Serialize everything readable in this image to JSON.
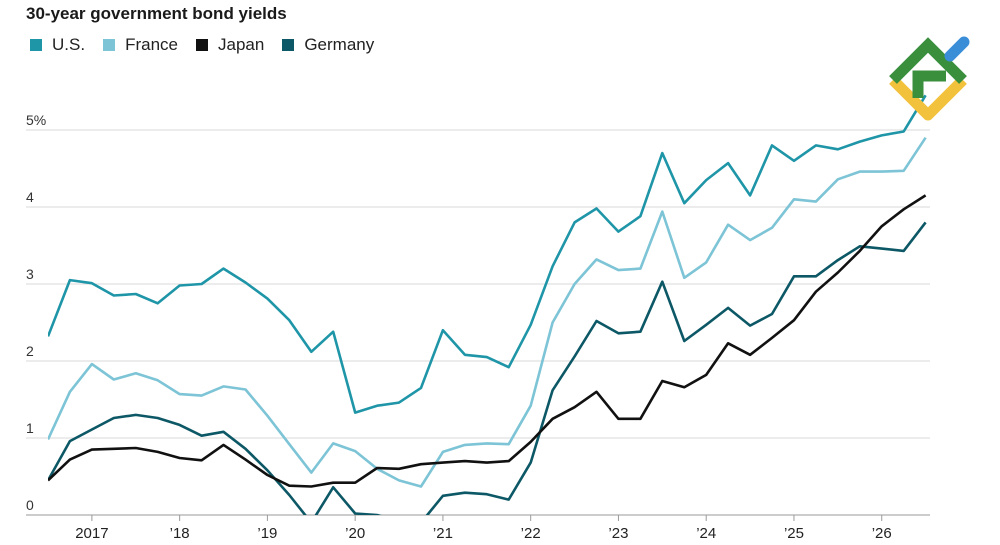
{
  "chart_data": {
    "type": "line",
    "title": "30-year government bond yields",
    "xlabel": "",
    "ylabel": "",
    "ylim": [
      0,
      5.5
    ],
    "xlim": [
      2016.5,
      2026.55
    ],
    "grid": true,
    "legend_position": "top-left",
    "y_ticks": [
      {
        "value": 0,
        "label": "0"
      },
      {
        "value": 1,
        "label": "1"
      },
      {
        "value": 2,
        "label": "2"
      },
      {
        "value": 3,
        "label": "3"
      },
      {
        "value": 4,
        "label": "4"
      },
      {
        "value": 5,
        "label": "5%"
      }
    ],
    "x_ticks": [
      {
        "value": 2017,
        "label": "2017"
      },
      {
        "value": 2018,
        "label": "’18"
      },
      {
        "value": 2019,
        "label": "’19"
      },
      {
        "value": 2020,
        "label": "’20"
      },
      {
        "value": 2021,
        "label": "’21"
      },
      {
        "value": 2022,
        "label": "’22"
      },
      {
        "value": 2023,
        "label": "’23"
      },
      {
        "value": 2024,
        "label": "’24"
      },
      {
        "value": 2025,
        "label": "’25"
      },
      {
        "value": 2026,
        "label": "’26"
      }
    ],
    "x": [
      2016.5,
      2016.75,
      2017.0,
      2017.25,
      2017.5,
      2017.75,
      2018.0,
      2018.25,
      2018.5,
      2018.75,
      2019.0,
      2019.25,
      2019.5,
      2019.75,
      2020.0,
      2020.25,
      2020.5,
      2020.75,
      2021.0,
      2021.25,
      2021.5,
      2021.75,
      2022.0,
      2022.25,
      2022.5,
      2022.75,
      2023.0,
      2023.25,
      2023.5,
      2023.75,
      2024.0,
      2024.25,
      2024.5,
      2024.75,
      2025.0,
      2025.25,
      2025.5,
      2025.75,
      2026.0,
      2026.25,
      2026.5
    ],
    "series": [
      {
        "name": "U.S.",
        "color": "#1f95a8",
        "values": [
          2.32,
          3.05,
          3.01,
          2.85,
          2.87,
          2.75,
          2.98,
          3.0,
          3.2,
          3.02,
          2.81,
          2.53,
          2.12,
          2.38,
          1.33,
          1.42,
          1.46,
          1.65,
          2.4,
          2.08,
          2.05,
          1.92,
          2.47,
          3.23,
          3.8,
          3.98,
          3.68,
          3.88,
          4.7,
          4.05,
          4.35,
          4.57,
          4.15,
          4.8,
          4.6,
          4.8,
          4.75,
          4.85,
          4.93,
          4.98,
          5.45
        ]
      },
      {
        "name": "France",
        "color": "#7cc4d6",
        "values": [
          0.98,
          1.6,
          1.96,
          1.76,
          1.84,
          1.75,
          1.57,
          1.55,
          1.67,
          1.63,
          1.29,
          0.92,
          0.55,
          0.93,
          0.83,
          0.6,
          0.45,
          0.37,
          0.82,
          0.91,
          0.93,
          0.92,
          1.42,
          2.5,
          3.0,
          3.32,
          3.18,
          3.2,
          3.94,
          3.08,
          3.28,
          3.77,
          3.57,
          3.73,
          4.1,
          4.07,
          4.36,
          4.46,
          4.46,
          4.47,
          4.9
        ]
      },
      {
        "name": "Japan",
        "color": "#111111",
        "values": [
          0.45,
          0.72,
          0.85,
          0.86,
          0.87,
          0.82,
          0.74,
          0.71,
          0.91,
          0.72,
          0.52,
          0.38,
          0.37,
          0.42,
          0.42,
          0.61,
          0.6,
          0.66,
          0.68,
          0.7,
          0.68,
          0.7,
          0.95,
          1.25,
          1.4,
          1.6,
          1.25,
          1.25,
          1.74,
          1.66,
          1.82,
          2.23,
          2.08,
          2.3,
          2.53,
          2.9,
          3.15,
          3.43,
          3.75,
          3.97,
          4.15
        ]
      },
      {
        "name": "Germany",
        "color": "#0d5866",
        "values": [
          0.45,
          0.96,
          1.11,
          1.26,
          1.3,
          1.26,
          1.17,
          1.03,
          1.08,
          0.86,
          0.58,
          0.26,
          -0.1,
          0.36,
          0.02,
          0.0,
          -0.08,
          -0.1,
          0.25,
          0.29,
          0.27,
          0.2,
          0.68,
          1.62,
          2.06,
          2.52,
          2.36,
          2.38,
          3.03,
          2.26,
          2.47,
          2.69,
          2.46,
          2.61,
          3.1,
          3.1,
          3.31,
          3.49,
          3.46,
          3.43,
          3.8
        ]
      }
    ]
  }
}
